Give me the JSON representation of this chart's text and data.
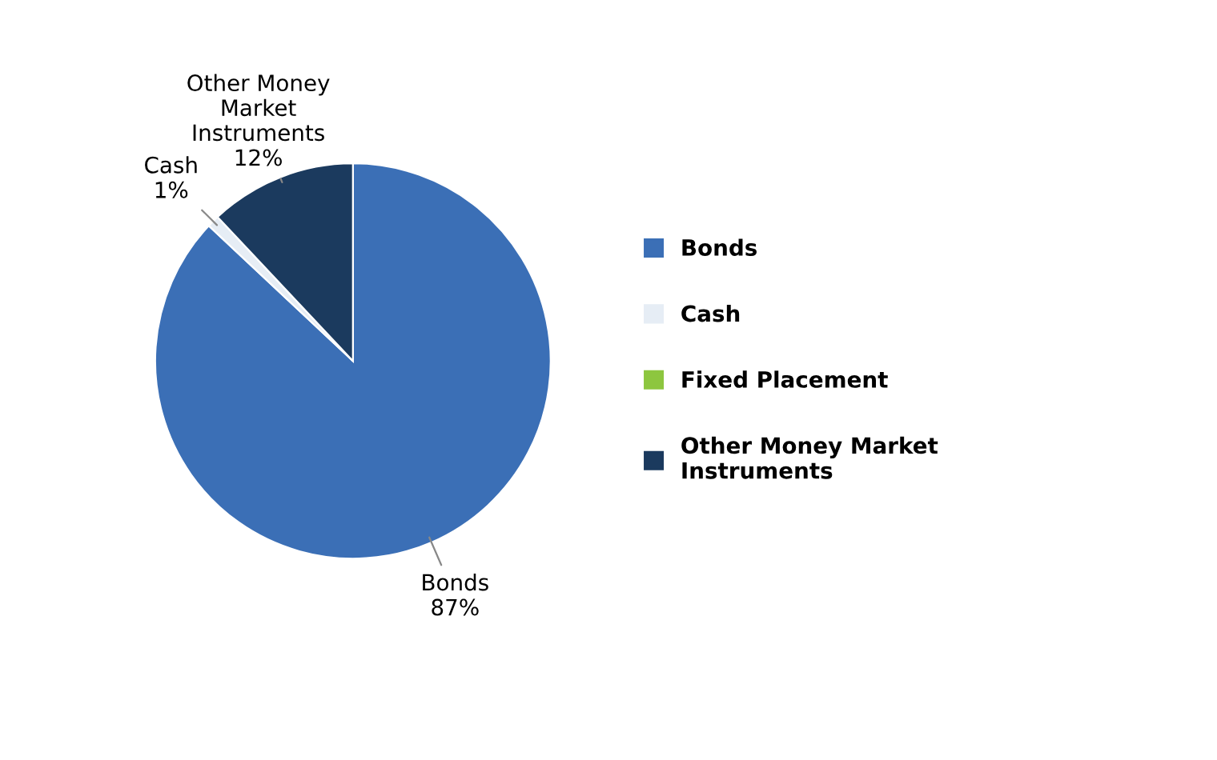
{
  "chart_data": {
    "type": "pie",
    "categories": [
      "Bonds",
      "Cash",
      "Fixed Placement",
      "Other Money Market Instruments"
    ],
    "values": [
      87,
      1,
      0,
      12
    ],
    "colors": [
      "#3b6fb6",
      "#e6edf5",
      "#8dc63f",
      "#1b3a5e"
    ],
    "value_labels": [
      "Bonds\n87%",
      "Cash\n1%",
      null,
      "Other Money\nMarket\nInstruments\n12%"
    ],
    "legend": "right"
  }
}
